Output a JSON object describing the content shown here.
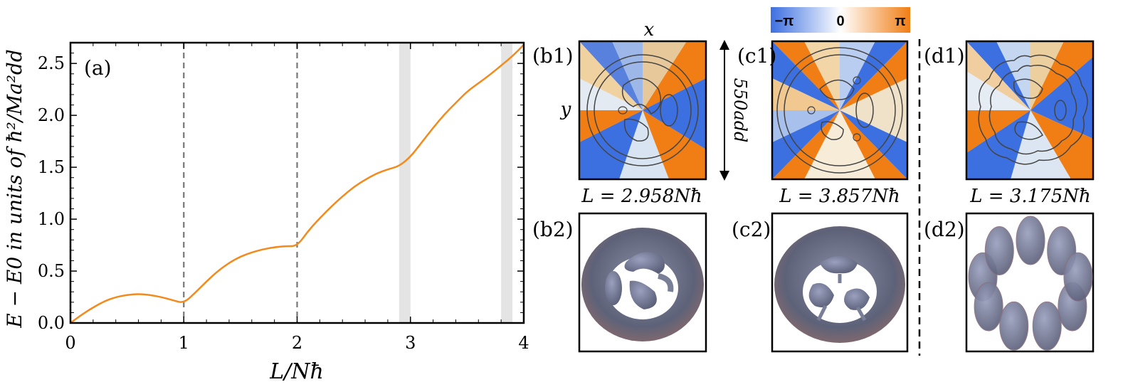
{
  "chart_data": [
    {
      "type": "line",
      "panel_label": "(a)",
      "xlabel": "L/Nħ",
      "ylabel": "E − E0 in units of ħ²/Ma²dd",
      "xlim": [
        0,
        4
      ],
      "ylim": [
        0,
        2.7
      ],
      "x_ticks": [
        "0",
        "1",
        "2",
        "3",
        "4"
      ],
      "y_ticks": [
        "0.0",
        "0.5",
        "1.0",
        "1.5",
        "2.0",
        "2.5"
      ],
      "series": [
        {
          "color": "#f28a1c",
          "x": [
            0.0,
            0.1,
            0.2,
            0.3,
            0.4,
            0.5,
            0.6,
            0.7,
            0.8,
            0.9,
            1.0,
            1.1,
            1.2,
            1.3,
            1.4,
            1.5,
            1.6,
            1.7,
            1.8,
            1.9,
            2.0,
            2.1,
            2.2,
            2.3,
            2.4,
            2.5,
            2.6,
            2.7,
            2.8,
            2.9,
            3.0,
            3.1,
            3.2,
            3.3,
            3.4,
            3.5,
            3.6,
            3.7,
            3.8,
            3.9,
            4.0
          ],
          "y": [
            0.0,
            0.08,
            0.15,
            0.21,
            0.25,
            0.27,
            0.28,
            0.27,
            0.25,
            0.22,
            0.19,
            0.29,
            0.4,
            0.5,
            0.58,
            0.64,
            0.68,
            0.71,
            0.73,
            0.74,
            0.74,
            0.89,
            1.01,
            1.12,
            1.22,
            1.31,
            1.38,
            1.44,
            1.48,
            1.51,
            1.6,
            1.74,
            1.88,
            2.01,
            2.12,
            2.23,
            2.31,
            2.39,
            2.48,
            2.57,
            2.68
          ]
        }
      ],
      "vlines_dashed": [
        1,
        2
      ],
      "shaded_bands": [
        [
          2.9,
          3.0
        ],
        [
          3.8,
          3.9
        ]
      ],
      "grid": false
    },
    {
      "type": "heatmap",
      "description_colorbar": true,
      "colorbar_ticks": [
        "−π",
        "0",
        "π"
      ],
      "colorbar_colors": [
        "#3c6fe0",
        "#ffffff",
        "#f07e14"
      ],
      "panels": [
        {
          "label": "(b1)",
          "caption": "L = 2.958Nħ",
          "x_axis_label": "x",
          "y_axis_label": "y"
        },
        {
          "label": "(c1)",
          "caption": "L = 3.857Nħ",
          "scale_label": "550add"
        },
        {
          "label": "(d1)",
          "caption": "L = 3.175Nħ"
        }
      ]
    },
    {
      "type": "other",
      "panels": [
        {
          "label": "(b2)"
        },
        {
          "label": "(c2)"
        },
        {
          "label": "(d2)"
        }
      ]
    }
  ]
}
